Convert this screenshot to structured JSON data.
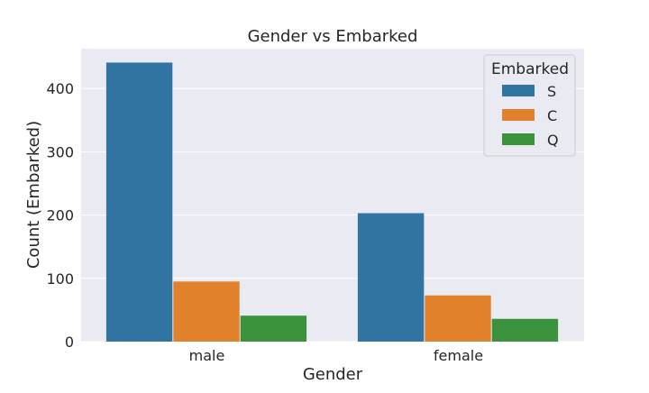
{
  "chart_data": {
    "type": "bar",
    "title": "Gender vs Embarked",
    "xlabel": "Gender",
    "ylabel": "Count (Embarked)",
    "categories": [
      "male",
      "female"
    ],
    "series": [
      {
        "name": "S",
        "values": [
          441,
          203
        ]
      },
      {
        "name": "C",
        "values": [
          95,
          73
        ]
      },
      {
        "name": "Q",
        "values": [
          41,
          36
        ]
      }
    ],
    "ylim": [
      0,
      463
    ],
    "yticks": [
      0,
      100,
      200,
      300,
      400
    ],
    "grid": true,
    "legend": {
      "title": "Embarked",
      "placement": "top-right"
    },
    "colors": {
      "S": "#3274a1",
      "C": "#e1812c",
      "Q": "#3a923a",
      "plot_background": "#eaeaf2",
      "gridline": "#ffffff"
    }
  }
}
